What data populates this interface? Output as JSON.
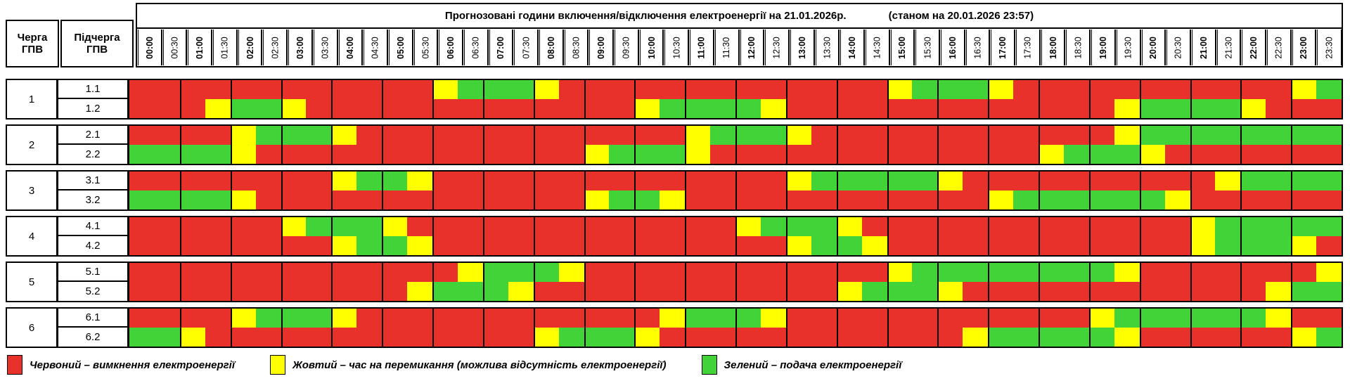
{
  "title": {
    "main": "Прогнозовані години включення/відключення електроенергії на 21.01.2026р.",
    "as_of": "(станом на 20.01.2026 23:57)"
  },
  "columns": {
    "queue_header": "Черга\nГПВ",
    "subqueue_header": "Підчерга\nГПВ"
  },
  "colors": {
    "R": "#e8312b",
    "Y": "#ffff00",
    "G": "#41d337",
    "border": "#000000"
  },
  "legend": [
    {
      "state": "R",
      "color": "#e8312b",
      "label": "Червоний – вимкнення електроенергії"
    },
    {
      "state": "Y",
      "color": "#ffff00",
      "label": "Жовтий – час на перемикання (можлива відсутність електроенергії)"
    },
    {
      "state": "G",
      "color": "#41d337",
      "label": "Зелений – подача електроенергії"
    }
  ],
  "chart_data": {
    "type": "heatmap",
    "title": "Прогнозовані години включення/відключення електроенергії на 21.01.2026р.",
    "x": [
      "00:00",
      "00:30",
      "01:00",
      "01:30",
      "02:00",
      "02:30",
      "03:00",
      "03:30",
      "04:00",
      "04:30",
      "05:00",
      "05:30",
      "06:00",
      "06:30",
      "07:00",
      "07:30",
      "08:00",
      "08:30",
      "09:00",
      "09:30",
      "10:00",
      "10:30",
      "11:00",
      "11:30",
      "12:00",
      "12:30",
      "13:00",
      "13:30",
      "14:00",
      "14:30",
      "15:00",
      "15:30",
      "16:00",
      "16:30",
      "17:00",
      "17:30",
      "18:00",
      "18:30",
      "19:00",
      "19:30",
      "20:00",
      "20:30",
      "21:00",
      "21:30",
      "22:00",
      "22:30",
      "23:00",
      "23:30"
    ],
    "value_legend": {
      "R": "вимкнення електроенергії",
      "Y": "час на перемикання",
      "G": "подача електроенергії"
    },
    "groups": [
      {
        "queue": "1",
        "rows": [
          {
            "label": "1.1",
            "cells": "RRRRRRRRRRRRYGGGYRRRRRRRRRRRRRYGGGYRRRRRRRRRRRYG"
          },
          {
            "label": "1.2",
            "cells": "RRRYGGYRRRRRRRRRRRRRYGGGGYRRRRRRRRRRRRRYGGGGYRRR"
          }
        ]
      },
      {
        "queue": "2",
        "rows": [
          {
            "label": "2.1",
            "cells": "RRRRYGGGYRRRRRRRRRRRRRYGGGYRRRRRRRRRRRRYGGGGGGGG"
          },
          {
            "label": "2.2",
            "cells": "GGGGYRRRRRRRRRRRRRYGGGYRRRRRRRRRRRRRYGGGYRRRRRRR"
          }
        ]
      },
      {
        "queue": "3",
        "rows": [
          {
            "label": "3.1",
            "cells": "RRRRRRRRYGGYRRRRRRRRRRRRRRYGGGGGYRRRRRRRRRRYGGGG"
          },
          {
            "label": "3.2",
            "cells": "GGGGYRRRRRRRRRRRRRYGGYRRRRRRRRRRRRYGGGGGGYRRRRRR"
          }
        ]
      },
      {
        "queue": "4",
        "rows": [
          {
            "label": "4.1",
            "cells": "RRRRRRYGGGYRRRRRRRRRRRRRYGGGYRRRRRRRRRRRRRYGGGGG"
          },
          {
            "label": "4.2",
            "cells": "RRRRRRRRYGGYRRRRRRRRRRRRRRYGGYRRRRRRRRRRRRYGGGYR"
          }
        ]
      },
      {
        "queue": "5",
        "rows": [
          {
            "label": "5.1",
            "cells": "RRRRRRRRRRRRRYGGGYRRRRRRRRRRRRYGGGGGGGGYRRRRRRRY"
          },
          {
            "label": "5.2",
            "cells": "RRRRRRRRRRRYGGGYRRRRRRRRRRRRYGGGYRRRRRRRRRRRRYGG"
          }
        ]
      },
      {
        "queue": "6",
        "rows": [
          {
            "label": "6.1",
            "cells": "RRRRYGGGYRRRRRRRRRRRRYGGGYRRRRRRRRRRRRYGGGGGGYRR"
          },
          {
            "label": "6.2",
            "cells": "GGYRRRRRRRRRRRRRYGGGYRRRRRRRRRRRRYGGGGGYRRRRRRYG"
          }
        ]
      }
    ]
  }
}
